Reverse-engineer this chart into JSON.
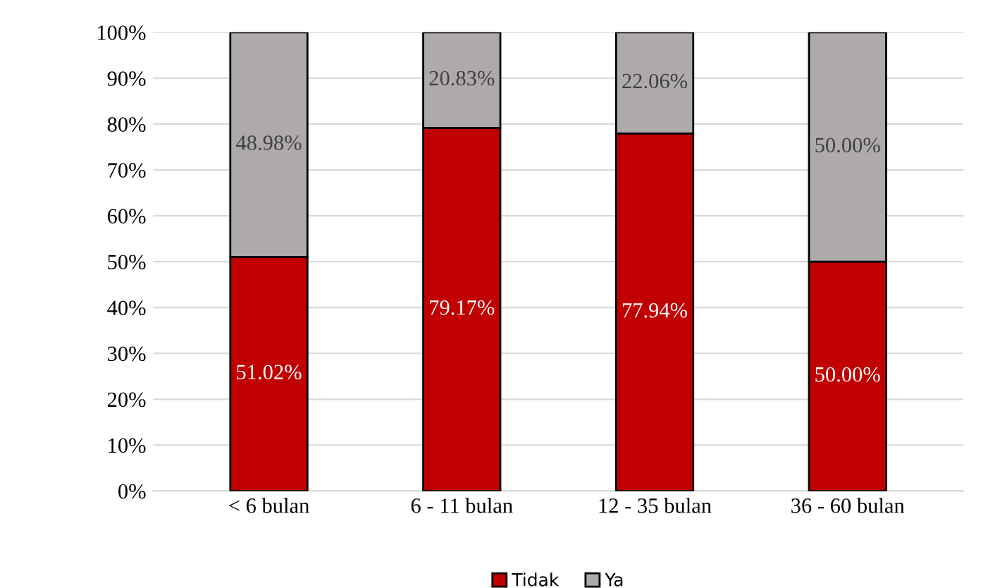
{
  "chart_data": {
    "type": "bar",
    "stacked": true,
    "categories": [
      "< 6 bulan",
      "6 - 11 bulan",
      "12 - 35 bulan",
      "36 - 60 bulan"
    ],
    "series": [
      {
        "name": "Tidak",
        "color": "#c00000",
        "values": [
          51.02,
          79.17,
          77.94,
          50.0
        ],
        "value_labels": [
          "51.02%",
          "79.17%",
          "77.94%",
          "50.00%"
        ]
      },
      {
        "name": "Ya",
        "color": "#aeaaaa",
        "values": [
          48.98,
          20.83,
          22.06,
          50.0
        ],
        "value_labels": [
          "48.98%",
          "20.83%",
          "22.06%",
          "50.00%"
        ]
      }
    ],
    "ylim": [
      0,
      100
    ],
    "yticks": [
      {
        "value": 0,
        "label": "0%"
      },
      {
        "value": 10,
        "label": "10%"
      },
      {
        "value": 20,
        "label": "20%"
      },
      {
        "value": 30,
        "label": "30%"
      },
      {
        "value": 40,
        "label": "40%"
      },
      {
        "value": 50,
        "label": "50%"
      },
      {
        "value": 60,
        "label": "60%"
      },
      {
        "value": 70,
        "label": "70%"
      },
      {
        "value": 80,
        "label": "80%"
      },
      {
        "value": 90,
        "label": "90%"
      },
      {
        "value": 100,
        "label": "100%"
      }
    ],
    "grid": "y",
    "legend": "bottom"
  }
}
